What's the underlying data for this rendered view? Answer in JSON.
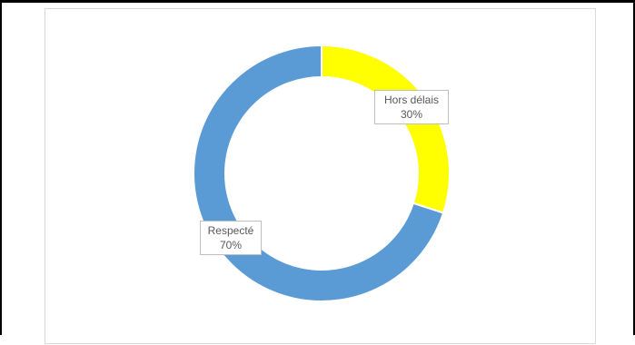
{
  "chart_data": {
    "type": "pie",
    "variant": "donut",
    "categories": [
      "Hors délais",
      "Respecté"
    ],
    "values": [
      30,
      70
    ],
    "value_labels": [
      "30%",
      "70%"
    ],
    "colors": [
      "#ffff00",
      "#5b9bd5"
    ],
    "title": "",
    "legend": "none",
    "start_angle_deg": 0,
    "direction": "clockwise"
  }
}
